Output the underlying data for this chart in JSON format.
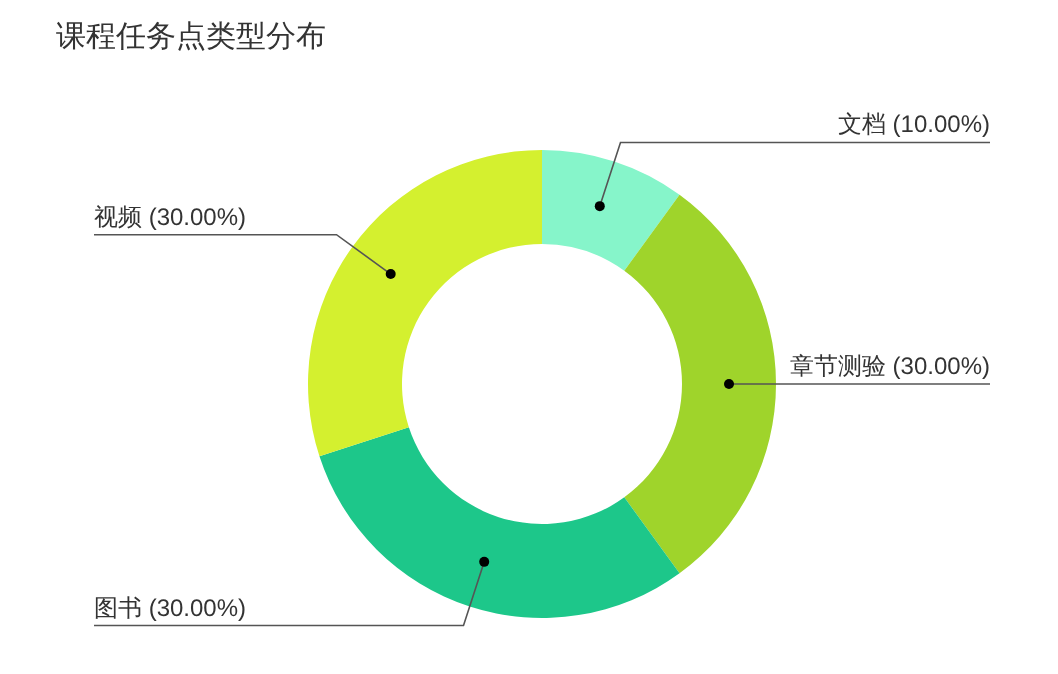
{
  "chart_data": {
    "type": "donut",
    "title": "课程任务点类型分布",
    "categories": [
      "文档",
      "章节测验",
      "图书",
      "视频"
    ],
    "values": [
      10,
      30,
      30,
      30
    ],
    "value_labels": [
      "(10.00%)",
      "(30.00%)",
      "(30.00%)",
      "(30.00%)"
    ],
    "colors": [
      "#86f5ca",
      "#9fd42b",
      "#1dc78a",
      "#d4f02f"
    ],
    "legend": false
  }
}
